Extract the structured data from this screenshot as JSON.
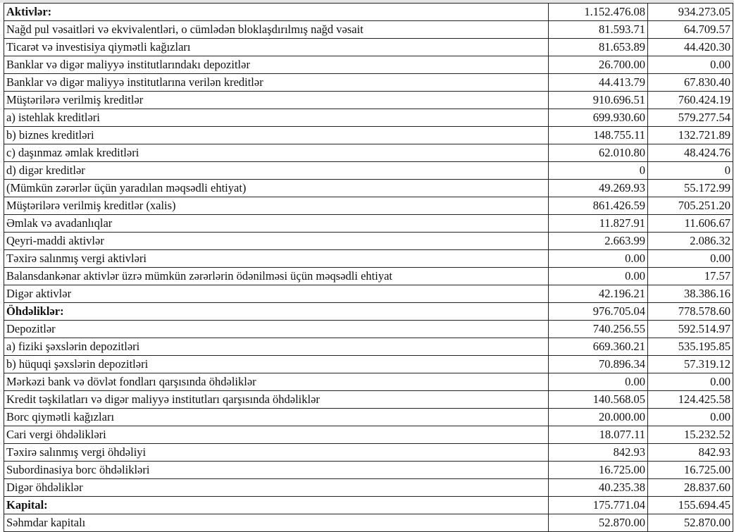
{
  "rows": [
    {
      "label": "Aktivlər:",
      "v1": "1.152.476.08",
      "v2": "934.273.05",
      "bold": true
    },
    {
      "label": "Nağd pul vəsaitləri və  ekvivalentləri, o cümlədən bloklaşdırılmış nağd vəsait",
      "v1": "81.593.71",
      "v2": "64.709.57"
    },
    {
      "label": "Ticarət və investisiya qiymətli kağızları",
      "v1": "81.653.89",
      "v2": "44.420.30"
    },
    {
      "label": "Banklar və digər maliyyə institutlarındakı depozitlər",
      "v1": "26.700.00",
      "v2": "0.00"
    },
    {
      "label": "Banklar və digər maliyyə institutlarına verilən kreditlər",
      "v1": "44.413.79",
      "v2": "67.830.40"
    },
    {
      "label": "Müştərilərə verilmiş kreditlər",
      "v1": "910.696.51",
      "v2": "760.424.19"
    },
    {
      "label": "a) istehlak kreditləri",
      "v1": "699.930.60",
      "v2": "579.277.54"
    },
    {
      "label": "b) biznes kreditləri",
      "v1": "148.755.11",
      "v2": "132.721.89"
    },
    {
      "label": "c) daşınmaz əmlak kreditləri",
      "v1": "62.010.80",
      "v2": "48.424.76"
    },
    {
      "label": "d) digər kreditlər",
      "v1": "0",
      "v2": "0"
    },
    {
      "label": "(Mümkün zərərlər üçün yaradılan məqsədli ehtiyat)",
      "v1": "49.269.93",
      "v2": "55.172.99"
    },
    {
      "label": "Müştərilərə verilmiş kreditlər (xalis)",
      "v1": "861.426.59",
      "v2": "705.251.20"
    },
    {
      "label": "Əmlak və avadanlıqlar",
      "v1": "11.827.91",
      "v2": "11.606.67"
    },
    {
      "label": "Qeyri-maddi aktivlər",
      "v1": "2.663.99",
      "v2": "2.086.32"
    },
    {
      "label": "Təxirə salınmış vergi aktivləri",
      "v1": "0.00",
      "v2": "0.00"
    },
    {
      "label": "Balansdankənar aktivlər üzrə mümkün zərərlərin ödənilməsi üçün məqsədli ehtiyat",
      "v1": "0.00",
      "v2": "17.57"
    },
    {
      "label": "Digər aktivlər",
      "v1": "42.196.21",
      "v2": "38.386.16"
    },
    {
      "label": "Öhdəliklər:",
      "v1": "976.705.04",
      "v2": "778.578.60",
      "bold": true
    },
    {
      "label": "Depozitlər",
      "v1": "740.256.55",
      "v2": "592.514.97"
    },
    {
      "label": "a) fiziki şəxslərin depozitləri",
      "v1": "669.360.21",
      "v2": "535.195.85"
    },
    {
      "label": "b) hüquqi şəxslərin depozitləri",
      "v1": "70.896.34",
      "v2": "57.319.12"
    },
    {
      "label": "Mərkəzi bank və dövlət fondları qarşısında öhdəliklər",
      "v1": "0.00",
      "v2": "0.00"
    },
    {
      "label": "Kredit təşkilatları və digər maliyyə institutları qarşısında öhdəliklər",
      "v1": "140.568.05",
      "v2": "124.425.58"
    },
    {
      "label": "Borc qiymətli kağızları",
      "v1": "20.000.00",
      "v2": "0.00"
    },
    {
      "label": "Cari vergi öhdəlikləri",
      "v1": "18.077.11",
      "v2": "15.232.52"
    },
    {
      "label": "Təxirə salınmış vergi öhdəliyi",
      "v1": "842.93",
      "v2": "842.93"
    },
    {
      "label": "Subordinasiya borc öhdəlikləri",
      "v1": "16.725.00",
      "v2": "16.725.00"
    },
    {
      "label": "Digər öhdəliklər",
      "v1": "40.235.38",
      "v2": "28.837.60"
    },
    {
      "label": "Kapital:",
      "v1": "175.771.04",
      "v2": "155.694.45",
      "bold": true
    },
    {
      "label": "Səhmdar kapitalı",
      "v1": "52.870.00",
      "v2": "52.870.00"
    }
  ]
}
